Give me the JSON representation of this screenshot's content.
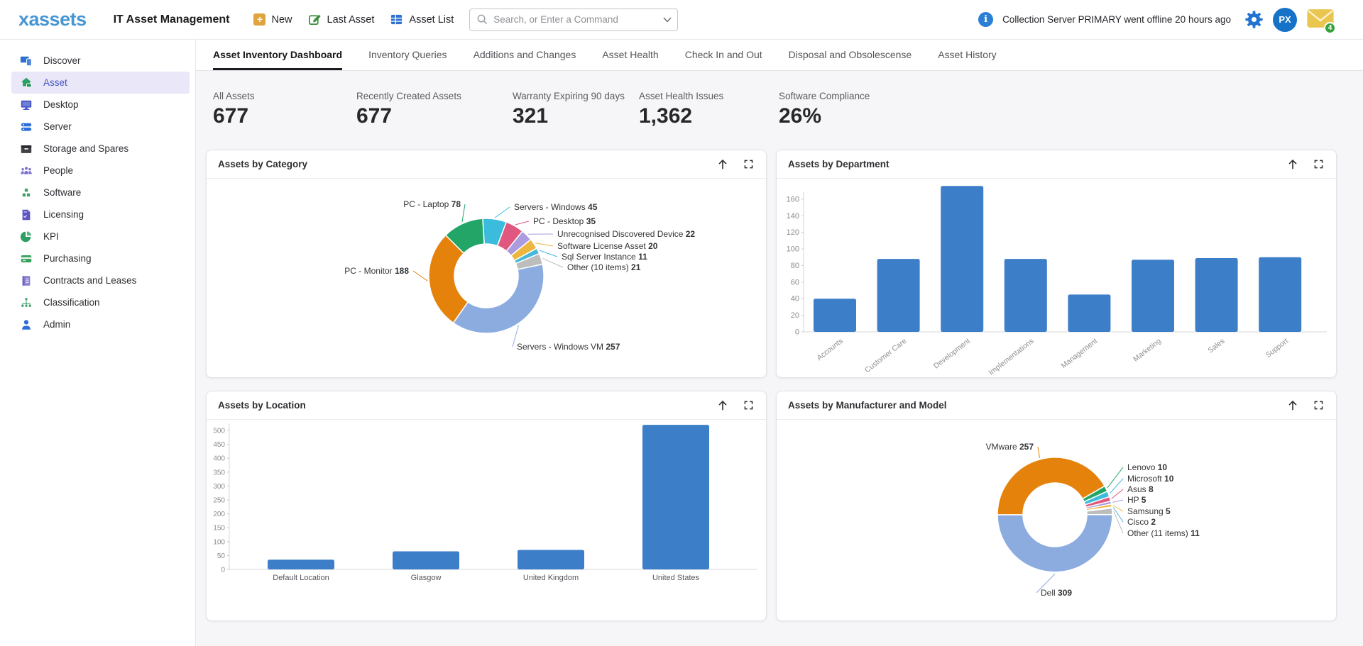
{
  "app": {
    "logo": "xassets",
    "title": "IT Asset Management"
  },
  "topbar": {
    "buttons": [
      {
        "label": "New"
      },
      {
        "label": "Last Asset"
      },
      {
        "label": "Asset List"
      }
    ],
    "search_placeholder": "Search, or Enter a Command",
    "notification": "Collection Server PRIMARY went offline 20 hours ago",
    "avatar_initials": "PX",
    "mail_badge": "4"
  },
  "sidebar": {
    "items": [
      {
        "label": "Discover"
      },
      {
        "label": "Asset"
      },
      {
        "label": "Desktop"
      },
      {
        "label": "Server"
      },
      {
        "label": "Storage and Spares"
      },
      {
        "label": "People"
      },
      {
        "label": "Software"
      },
      {
        "label": "Licensing"
      },
      {
        "label": "KPI"
      },
      {
        "label": "Purchasing"
      },
      {
        "label": "Contracts and Leases"
      },
      {
        "label": "Classification"
      },
      {
        "label": "Admin"
      }
    ]
  },
  "tabs": [
    {
      "label": "Asset Inventory Dashboard",
      "active": true
    },
    {
      "label": "Inventory Queries"
    },
    {
      "label": "Additions and Changes"
    },
    {
      "label": "Asset Health"
    },
    {
      "label": "Check In and Out"
    },
    {
      "label": "Disposal and Obsolescense"
    },
    {
      "label": "Asset History"
    }
  ],
  "kpis": [
    {
      "label": "All Assets",
      "value": "677"
    },
    {
      "label": "Recently Created Assets",
      "value": "677"
    },
    {
      "label": "Warranty Expiring 90 days",
      "value": "321"
    },
    {
      "label": "Asset Health Issues",
      "value": "1,362"
    },
    {
      "label": "Software Compliance",
      "value": "26%"
    }
  ],
  "chart_data": [
    {
      "type": "donut",
      "title": "Assets by Category",
      "start_angle": -45,
      "series": [
        {
          "name": "PC - Laptop",
          "value": 78,
          "color": "#22a567"
        },
        {
          "name": "Servers - Windows",
          "value": 45,
          "color": "#3bbcdc"
        },
        {
          "name": "PC - Desktop",
          "value": 35,
          "color": "#e0577f"
        },
        {
          "name": "Unrecognised Discovered Device",
          "value": 22,
          "color": "#ab9bdf"
        },
        {
          "name": "Software License Asset",
          "value": 20,
          "color": "#edb63e"
        },
        {
          "name": "Sql Server Instance",
          "value": 11,
          "color": "#46b7d8"
        },
        {
          "name": "Other (10 items)",
          "value": 21,
          "color": "#bdbdbd"
        },
        {
          "name": "Servers - Windows VM",
          "value": 257,
          "color": "#8cace0"
        },
        {
          "name": "PC - Monitor",
          "value": 188,
          "color": "#e5820b"
        }
      ]
    },
    {
      "type": "bar",
      "title": "Assets by Department",
      "categories": [
        "Accounts",
        "Customer Care",
        "Development",
        "Implementations",
        "Management",
        "Marketing",
        "Sales",
        "Support"
      ],
      "values": [
        40,
        88,
        176,
        88,
        45,
        87,
        89,
        90
      ],
      "color": "#3d7ec8",
      "ylim": [
        0,
        160
      ],
      "ytick_step": 20
    },
    {
      "type": "bar",
      "title": "Assets by Location",
      "categories": [
        "Default Location",
        "Glasgow",
        "United Kingdom",
        "United States"
      ],
      "values": [
        35,
        65,
        70,
        520
      ],
      "color": "#3d7ec8",
      "ylim": [
        0,
        500
      ],
      "ytick_step": 50
    },
    {
      "type": "donut",
      "title": "Assets by Manufacturer and Model",
      "start_angle": -90,
      "series": [
        {
          "name": "VMware",
          "value": 257,
          "color": "#e5820b"
        },
        {
          "name": "Lenovo",
          "value": 10,
          "color": "#22a567"
        },
        {
          "name": "Microsoft",
          "value": 10,
          "color": "#3bbcdc"
        },
        {
          "name": "Asus",
          "value": 8,
          "color": "#e0577f"
        },
        {
          "name": "HP",
          "value": 5,
          "color": "#ab9bdf"
        },
        {
          "name": "Samsung",
          "value": 5,
          "color": "#edb63e"
        },
        {
          "name": "Cisco",
          "value": 2,
          "color": "#46b7d8"
        },
        {
          "name": "Other (11 items)",
          "value": 11,
          "color": "#bdbdbd"
        },
        {
          "name": "Dell",
          "value": 309,
          "color": "#8cace0"
        }
      ]
    }
  ]
}
